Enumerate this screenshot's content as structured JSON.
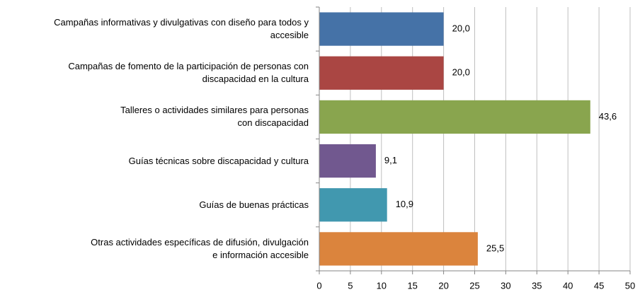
{
  "chart_data": {
    "type": "barh",
    "categories": [
      "Campañas informativas y divulgativas con diseño para todos y\naccesible",
      "Campañas de fomento de la participación de personas con\ndiscapacidad en la cultura",
      "Talleres o actividades similares para personas\ncon discapacidad",
      "Guías técnicas sobre discapacidad y cultura",
      "Guías de buenas prácticas",
      "Otras actividades específicas de difusión, divulgación\ne información accesible"
    ],
    "values": [
      20.0,
      20.0,
      43.6,
      9.1,
      10.9,
      25.5
    ],
    "value_labels": [
      "20,0",
      "20,0",
      "43,6",
      "9,1",
      "10,9",
      "25,5"
    ],
    "colors": [
      "#4572a7",
      "#aa4643",
      "#89a54e",
      "#71588f",
      "#4198af",
      "#db843d"
    ],
    "xlim": [
      0,
      50
    ],
    "xticks": [
      0,
      5,
      10,
      15,
      20,
      25,
      30,
      35,
      40,
      45,
      50
    ],
    "grid": true
  }
}
